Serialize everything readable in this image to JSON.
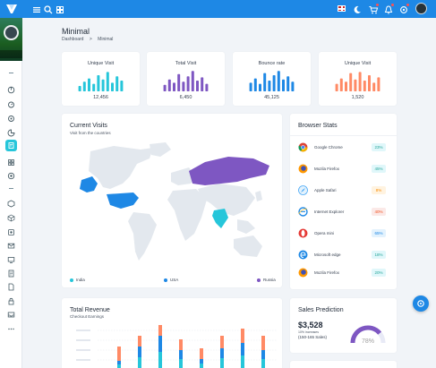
{
  "header": {
    "icons": [
      "menu-icon",
      "search-icon",
      "grid-icon",
      "flag-uk-icon",
      "moon-icon",
      "cart-icon",
      "bell-icon",
      "settings-icon"
    ]
  },
  "page": {
    "title": "Minimal",
    "breadcrumb": [
      "Dashboard",
      ">",
      "Minimal"
    ]
  },
  "stats": [
    {
      "title": "Unique Visit",
      "value": "12,456",
      "color": "#26c6da",
      "bars": [
        0.25,
        0.45,
        0.6,
        0.35,
        0.75,
        0.55,
        0.9,
        0.4,
        0.7,
        0.5
      ]
    },
    {
      "title": "Total Visit",
      "value": "6,450",
      "color": "#7e57c2",
      "bars": [
        0.3,
        0.55,
        0.4,
        0.8,
        0.45,
        0.7,
        0.95,
        0.5,
        0.65,
        0.35
      ]
    },
    {
      "title": "Bounce rate",
      "value": "45,125",
      "color": "#1e88e5",
      "bars": [
        0.4,
        0.6,
        0.35,
        0.85,
        0.5,
        0.75,
        0.95,
        0.55,
        0.7,
        0.45
      ]
    },
    {
      "title": "Unique Visit",
      "value": "1,520",
      "color": "#ff8a65",
      "bars": [
        0.35,
        0.6,
        0.45,
        0.85,
        0.55,
        0.9,
        0.5,
        0.75,
        0.4,
        0.65
      ]
    }
  ],
  "current_visits": {
    "title": "Current Visits",
    "subtitle": "Visit from the countries",
    "legend": [
      {
        "label": "India",
        "color": "#26c6da"
      },
      {
        "label": "USA",
        "color": "#1e88e5"
      },
      {
        "label": "Russia",
        "color": "#7e57c2"
      }
    ]
  },
  "browser_stats": {
    "title": "Browser Stats",
    "rows": [
      {
        "name": "Google Chrome",
        "pct": "23%",
        "icon": "chrome-icon",
        "color": "#26c6da"
      },
      {
        "name": "Mozila Firefox",
        "pct": "45%",
        "icon": "firefox-icon",
        "color": "#26c6da"
      },
      {
        "name": "Apple Safari",
        "pct": "8%",
        "icon": "safari-icon",
        "color": "#ff9800"
      },
      {
        "name": "Internet Explorer",
        "pct": "40%",
        "icon": "ie-icon",
        "color": "#ff7043"
      },
      {
        "name": "Opera mini",
        "pct": "65%",
        "icon": "opera-icon",
        "color": "#1e88e5"
      },
      {
        "name": "Microsoft edge",
        "pct": "18%",
        "icon": "edge-icon",
        "color": "#26c6da"
      },
      {
        "name": "Mozila Firefox",
        "pct": "20%",
        "icon": "firefox-icon",
        "color": "#26c6da"
      }
    ]
  },
  "total_revenue": {
    "title": "Total Revenue",
    "subtitle": "Checkout Earnings"
  },
  "sales_prediction": {
    "title": "Sales Prediction",
    "value": "$3,528",
    "note": "10% increases",
    "range": "(150-165 Sales)",
    "gauge_label": "78%",
    "gauge_fraction": 0.78
  }
}
